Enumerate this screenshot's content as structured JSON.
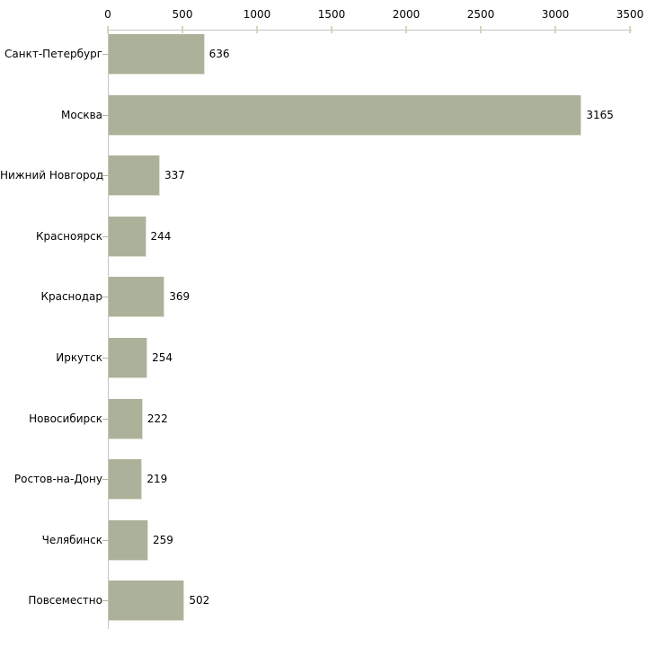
{
  "chart_data": {
    "type": "bar",
    "orientation": "horizontal",
    "title": "",
    "xlabel": "",
    "ylabel": "",
    "categories": [
      "Санкт-Петербург",
      "Москва",
      "Нижний Новгород",
      "Красноярск",
      "Краснодар",
      "Иркутск",
      "Новосибирск",
      "Ростов-на-Дону",
      "Челябинск",
      "Повсеместно"
    ],
    "values": [
      636,
      3165,
      337,
      244,
      369,
      254,
      222,
      219,
      259,
      502
    ],
    "value_labels": [
      "636",
      "3165",
      "337",
      "244",
      "369",
      "254",
      "222",
      "219",
      "259",
      "502"
    ],
    "xlim": [
      0,
      3500
    ],
    "x_ticks": [
      0,
      500,
      1000,
      1500,
      2000,
      2500,
      3000,
      3500
    ],
    "x_tick_labels": [
      "0",
      "500",
      "1000",
      "1500",
      "2000",
      "2500",
      "3000",
      "3500"
    ],
    "grid": false,
    "legend": false,
    "colors": {
      "bar_fill": "#acb299",
      "bar_edge_light": "#e0e2d5",
      "axis_line": "#c6c6c6",
      "x_tick": "#d3d6ba",
      "y_tick": "#b2b698",
      "text": "#000000",
      "background": "#ffffff"
    }
  }
}
